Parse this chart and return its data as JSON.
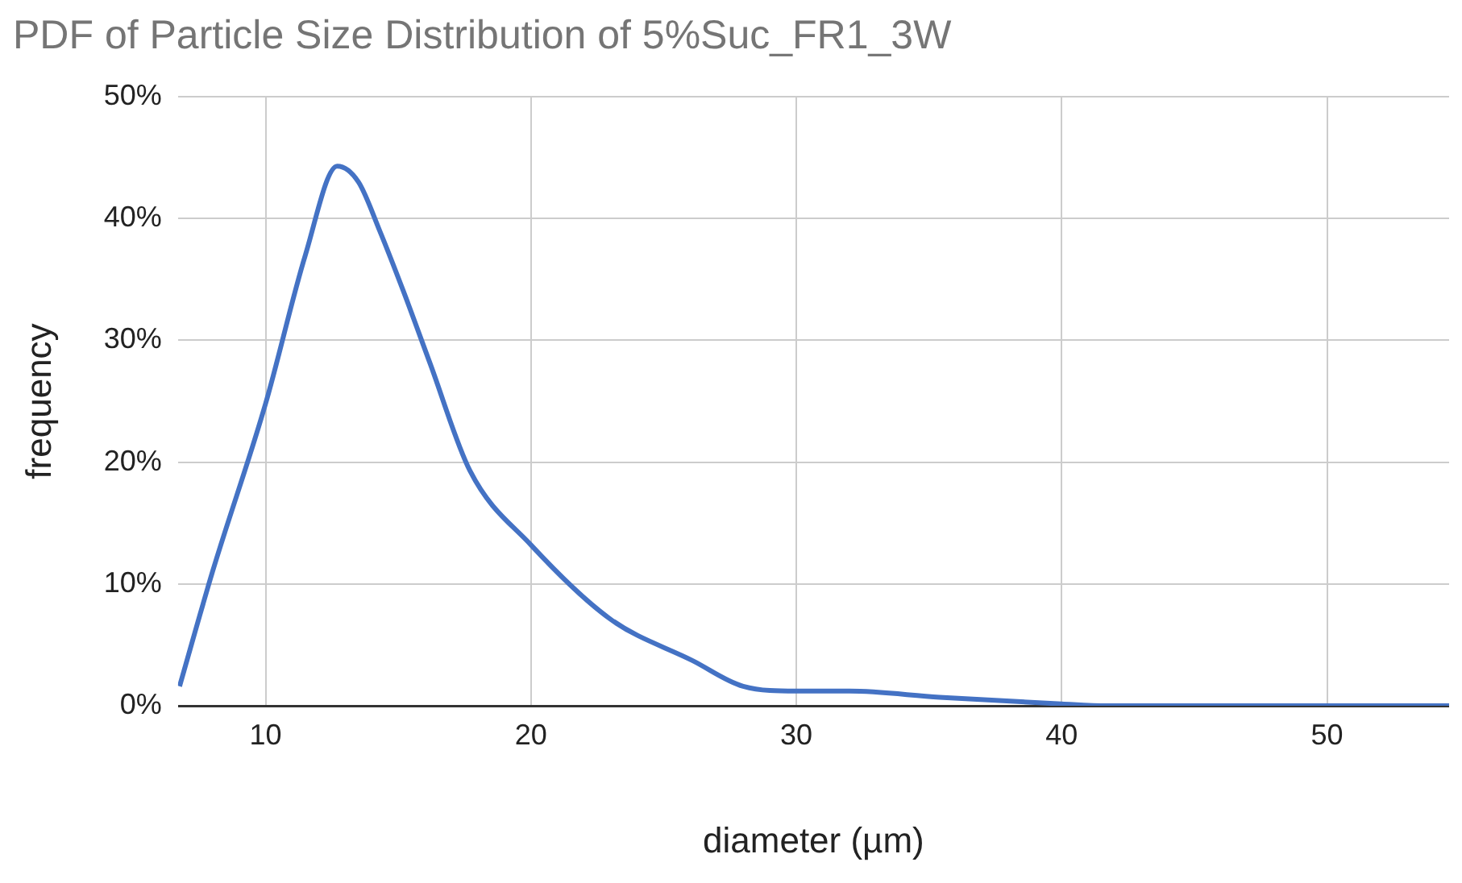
{
  "chart_data": {
    "type": "line",
    "title": "PDF of Particle Size Distribution of 5%Suc_FR1_3W",
    "xlabel": "diameter (µm)",
    "ylabel": "frequency",
    "x": [
      6.76,
      8,
      10,
      11.5,
      12.7,
      13.5,
      14.3,
      15.2,
      16.2,
      17.7,
      20,
      23,
      26.1,
      28,
      30,
      32,
      35.4,
      40,
      41.7,
      45,
      50,
      54.6
    ],
    "series": [
      {
        "color": "#4472c4",
        "values": [
          1.6,
          11,
          24.8,
          37,
          44.3,
          43,
          39,
          34,
          28.1,
          19.3,
          13.2,
          7.1,
          3.7,
          1.6,
          1.2,
          1.2,
          0.7,
          0.15,
          0,
          0,
          0,
          0
        ]
      }
    ],
    "xlim": [
      6.7,
      54.6
    ],
    "xticks": [
      10,
      20,
      30,
      40,
      50
    ],
    "ylim": [
      0,
      50
    ],
    "yticks": [
      {
        "value": 0,
        "label": "0%"
      },
      {
        "value": 10,
        "label": "10%"
      },
      {
        "value": 20,
        "label": "20%"
      },
      {
        "value": 30,
        "label": "30%"
      },
      {
        "value": 40,
        "label": "40%"
      },
      {
        "value": 50,
        "label": "50%"
      }
    ],
    "grid": true,
    "legend": false,
    "marker": "none",
    "line_style": "solid"
  }
}
